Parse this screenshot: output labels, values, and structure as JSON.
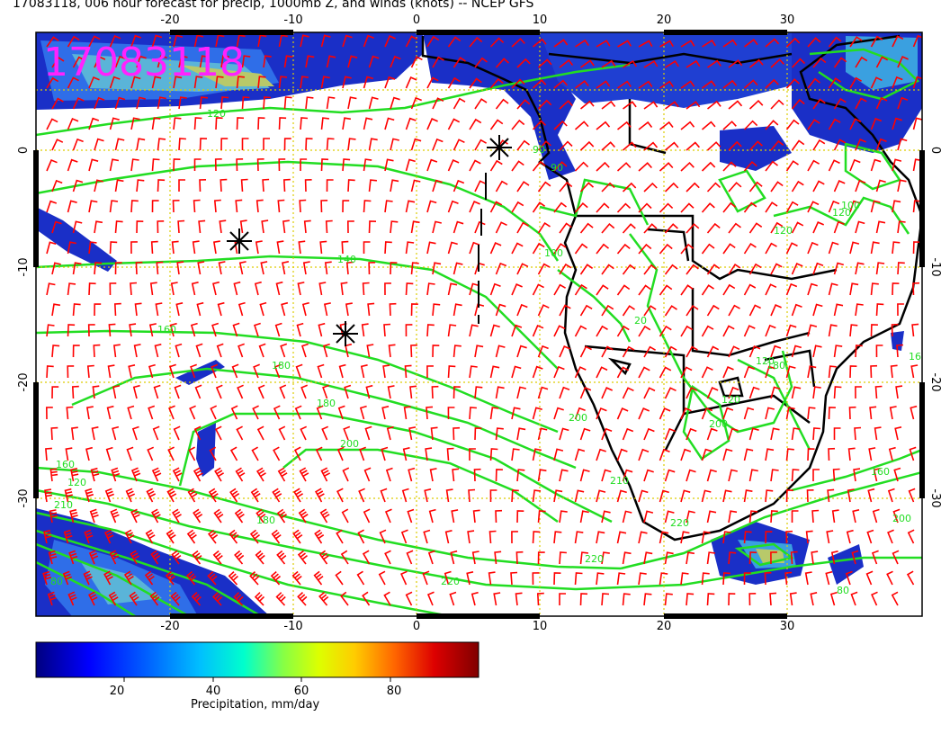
{
  "title": "17083118, 006 hour forecast for precip, 1000mb Z, and winds (knots) -- NCEP GFS",
  "stamp": "17083118",
  "map": {
    "lon_ticks": [
      "-20",
      "-10",
      "0",
      "10",
      "20",
      "30"
    ],
    "lat_ticks": [
      "0",
      "-10",
      "-20",
      "-30"
    ],
    "lon_range": [
      -30,
      42
    ],
    "lat_range": [
      -40,
      10
    ],
    "grid_color": "#ddcc00",
    "contour_color": "#22dd22",
    "barb_color": "#ff0000",
    "coast_color": "#000000",
    "contour_labels": [
      "120",
      "140",
      "160",
      "180",
      "180",
      "200",
      "200",
      "210",
      "200",
      "100",
      "160",
      "120",
      "120",
      "210",
      "220",
      "220",
      "220",
      "200",
      "160",
      "160",
      "180",
      "120",
      "100",
      "120",
      "90",
      "90",
      "20",
      "180",
      "120",
      "80",
      "80"
    ]
  },
  "colorbar": {
    "ticks": [
      "20",
      "40",
      "60",
      "80"
    ],
    "label": "Precipitation, mm/day",
    "min": 0,
    "max": 100,
    "colors": [
      "#000080",
      "#0000ff",
      "#0060ff",
      "#00bfff",
      "#00ffcc",
      "#88ff44",
      "#ddff00",
      "#ffcc00",
      "#ff6600",
      "#dd0000",
      "#800000"
    ]
  }
}
